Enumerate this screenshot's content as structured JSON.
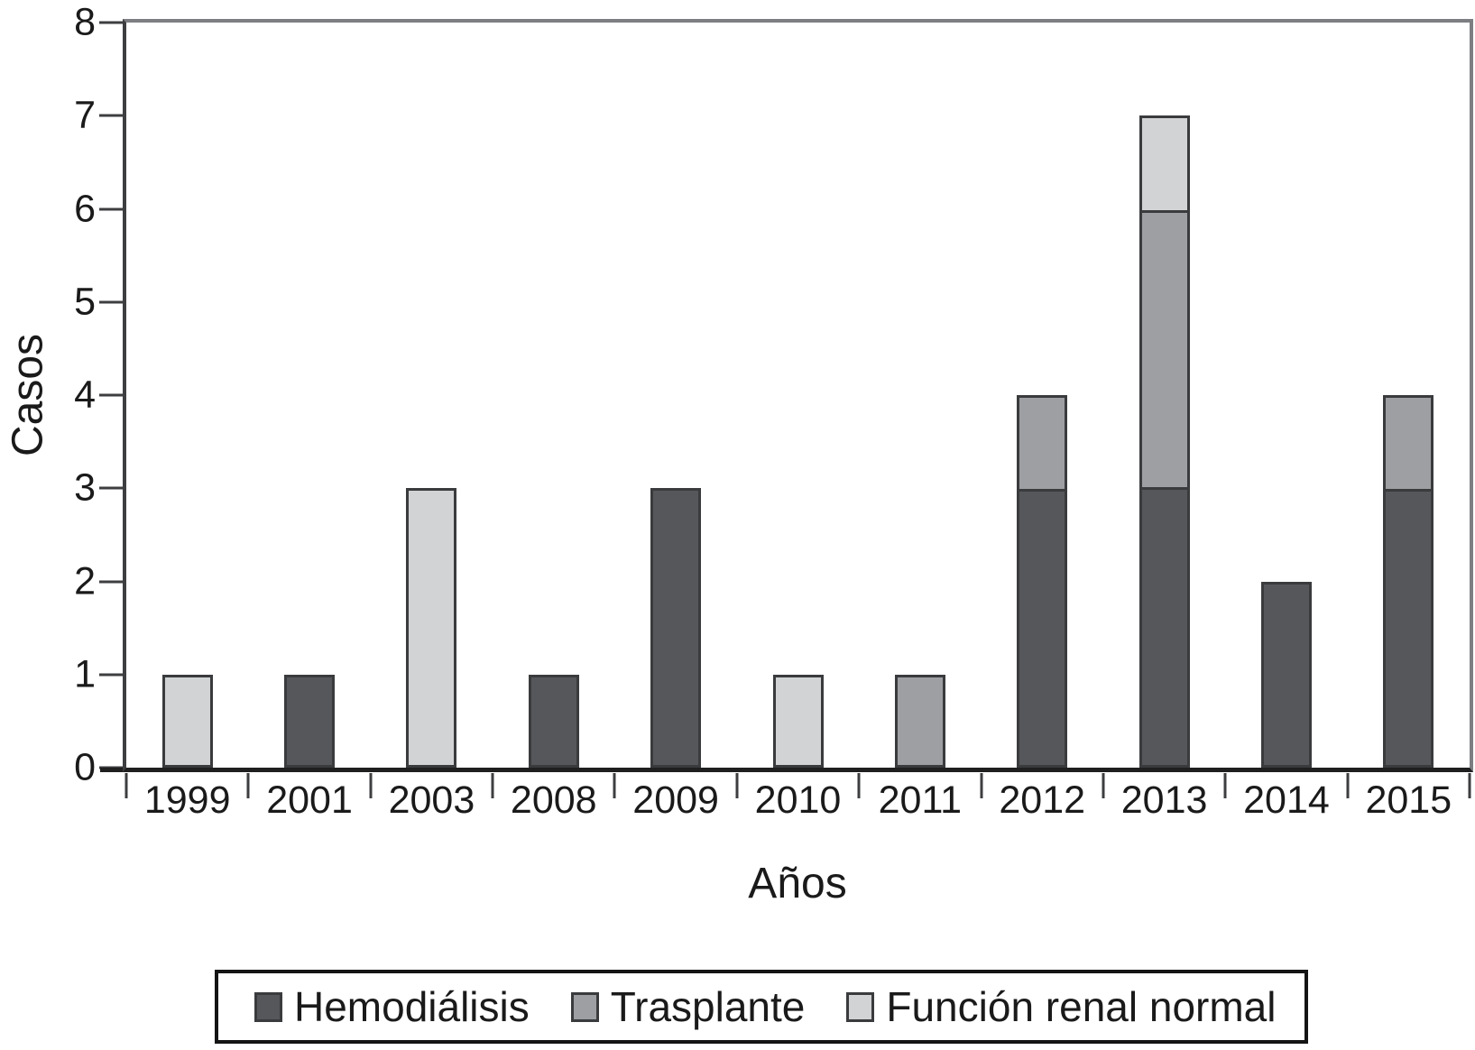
{
  "figure": {
    "background": "#ffffff",
    "text_color": "#1a1a1a"
  },
  "chart_data": {
    "type": "bar",
    "stacked": true,
    "title": "",
    "xlabel": "Años",
    "ylabel": "Casos",
    "categories": [
      "1999",
      "2001",
      "2003",
      "2008",
      "2009",
      "2010",
      "2011",
      "2012",
      "2013",
      "2014",
      "2015"
    ],
    "series": [
      {
        "name": "Hemodiálisis",
        "color": "#55575a",
        "values": [
          0,
          1,
          0,
          1,
          3,
          0,
          0,
          3,
          3,
          2,
          3
        ]
      },
      {
        "name": "Trasplante",
        "color": "#9d9fa2",
        "values": [
          0,
          0,
          0,
          0,
          0,
          0,
          1,
          1,
          3,
          0,
          1
        ]
      },
      {
        "name": "Función renal normal",
        "color": "#d1d3d4",
        "values": [
          1,
          0,
          3,
          0,
          0,
          1,
          0,
          0,
          1,
          0,
          0
        ]
      }
    ],
    "totals": [
      1,
      1,
      3,
      1,
      3,
      1,
      1,
      4,
      7,
      2,
      4
    ],
    "ylim": [
      0,
      8
    ],
    "yticks": [
      0,
      1,
      2,
      3,
      4,
      5,
      6,
      7,
      8
    ],
    "grid": false,
    "legend_position": "bottom",
    "bar_border_color": "#3a3b3d",
    "axis_colors": {
      "left": "#3d3e40",
      "bottom": "#1f1f1f",
      "top": "#7c7e81",
      "right": "#7c7e81"
    }
  }
}
